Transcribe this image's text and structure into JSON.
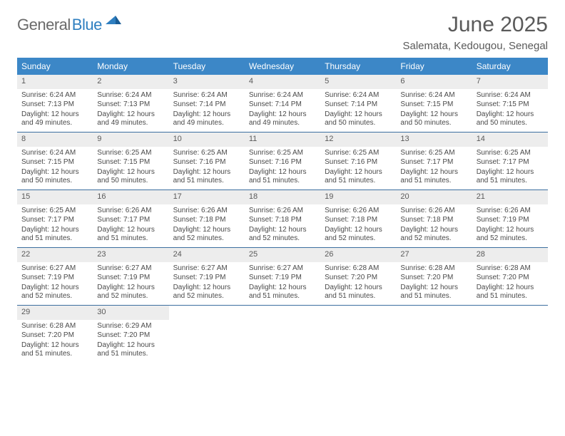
{
  "logo": {
    "part1": "General",
    "part2": "Blue"
  },
  "title": "June 2025",
  "subtitle": "Salemata, Kedougou, Senegal",
  "colors": {
    "header_bg": "#3c87c7",
    "header_fg": "#ffffff",
    "daynum_bg": "#ededed",
    "week_border": "#3c6fa0",
    "logo_gray": "#6a6a6a",
    "logo_blue": "#2f7fc0"
  },
  "day_names": [
    "Sunday",
    "Monday",
    "Tuesday",
    "Wednesday",
    "Thursday",
    "Friday",
    "Saturday"
  ],
  "weeks": [
    [
      {
        "n": "1",
        "sr": "6:24 AM",
        "ss": "7:13 PM",
        "dl": "12 hours and 49 minutes."
      },
      {
        "n": "2",
        "sr": "6:24 AM",
        "ss": "7:13 PM",
        "dl": "12 hours and 49 minutes."
      },
      {
        "n": "3",
        "sr": "6:24 AM",
        "ss": "7:14 PM",
        "dl": "12 hours and 49 minutes."
      },
      {
        "n": "4",
        "sr": "6:24 AM",
        "ss": "7:14 PM",
        "dl": "12 hours and 49 minutes."
      },
      {
        "n": "5",
        "sr": "6:24 AM",
        "ss": "7:14 PM",
        "dl": "12 hours and 50 minutes."
      },
      {
        "n": "6",
        "sr": "6:24 AM",
        "ss": "7:15 PM",
        "dl": "12 hours and 50 minutes."
      },
      {
        "n": "7",
        "sr": "6:24 AM",
        "ss": "7:15 PM",
        "dl": "12 hours and 50 minutes."
      }
    ],
    [
      {
        "n": "8",
        "sr": "6:24 AM",
        "ss": "7:15 PM",
        "dl": "12 hours and 50 minutes."
      },
      {
        "n": "9",
        "sr": "6:25 AM",
        "ss": "7:15 PM",
        "dl": "12 hours and 50 minutes."
      },
      {
        "n": "10",
        "sr": "6:25 AM",
        "ss": "7:16 PM",
        "dl": "12 hours and 51 minutes."
      },
      {
        "n": "11",
        "sr": "6:25 AM",
        "ss": "7:16 PM",
        "dl": "12 hours and 51 minutes."
      },
      {
        "n": "12",
        "sr": "6:25 AM",
        "ss": "7:16 PM",
        "dl": "12 hours and 51 minutes."
      },
      {
        "n": "13",
        "sr": "6:25 AM",
        "ss": "7:17 PM",
        "dl": "12 hours and 51 minutes."
      },
      {
        "n": "14",
        "sr": "6:25 AM",
        "ss": "7:17 PM",
        "dl": "12 hours and 51 minutes."
      }
    ],
    [
      {
        "n": "15",
        "sr": "6:25 AM",
        "ss": "7:17 PM",
        "dl": "12 hours and 51 minutes."
      },
      {
        "n": "16",
        "sr": "6:26 AM",
        "ss": "7:17 PM",
        "dl": "12 hours and 51 minutes."
      },
      {
        "n": "17",
        "sr": "6:26 AM",
        "ss": "7:18 PM",
        "dl": "12 hours and 52 minutes."
      },
      {
        "n": "18",
        "sr": "6:26 AM",
        "ss": "7:18 PM",
        "dl": "12 hours and 52 minutes."
      },
      {
        "n": "19",
        "sr": "6:26 AM",
        "ss": "7:18 PM",
        "dl": "12 hours and 52 minutes."
      },
      {
        "n": "20",
        "sr": "6:26 AM",
        "ss": "7:18 PM",
        "dl": "12 hours and 52 minutes."
      },
      {
        "n": "21",
        "sr": "6:26 AM",
        "ss": "7:19 PM",
        "dl": "12 hours and 52 minutes."
      }
    ],
    [
      {
        "n": "22",
        "sr": "6:27 AM",
        "ss": "7:19 PM",
        "dl": "12 hours and 52 minutes."
      },
      {
        "n": "23",
        "sr": "6:27 AM",
        "ss": "7:19 PM",
        "dl": "12 hours and 52 minutes."
      },
      {
        "n": "24",
        "sr": "6:27 AM",
        "ss": "7:19 PM",
        "dl": "12 hours and 52 minutes."
      },
      {
        "n": "25",
        "sr": "6:27 AM",
        "ss": "7:19 PM",
        "dl": "12 hours and 51 minutes."
      },
      {
        "n": "26",
        "sr": "6:28 AM",
        "ss": "7:20 PM",
        "dl": "12 hours and 51 minutes."
      },
      {
        "n": "27",
        "sr": "6:28 AM",
        "ss": "7:20 PM",
        "dl": "12 hours and 51 minutes."
      },
      {
        "n": "28",
        "sr": "6:28 AM",
        "ss": "7:20 PM",
        "dl": "12 hours and 51 minutes."
      }
    ],
    [
      {
        "n": "29",
        "sr": "6:28 AM",
        "ss": "7:20 PM",
        "dl": "12 hours and 51 minutes."
      },
      {
        "n": "30",
        "sr": "6:29 AM",
        "ss": "7:20 PM",
        "dl": "12 hours and 51 minutes."
      },
      null,
      null,
      null,
      null,
      null
    ]
  ],
  "labels": {
    "sunrise": "Sunrise:",
    "sunset": "Sunset:",
    "daylight": "Daylight:"
  }
}
